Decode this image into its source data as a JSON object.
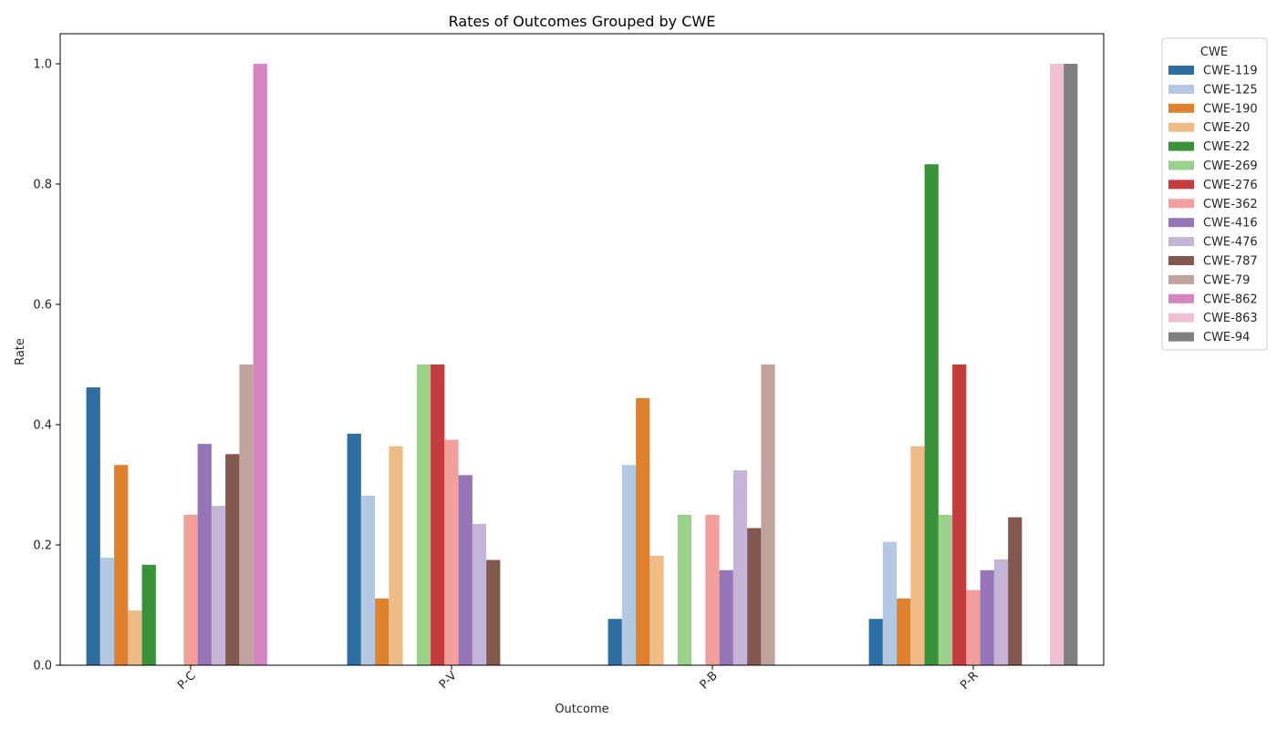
{
  "chart_data": {
    "type": "bar",
    "title": "Rates of Outcomes Grouped by CWE",
    "xlabel": "Outcome",
    "ylabel": "Rate",
    "ylim": [
      0,
      1.05
    ],
    "yticks": [
      "0.0",
      "0.2",
      "0.4",
      "0.6",
      "0.8",
      "1.0"
    ],
    "categories": [
      "P-C",
      "P-V",
      "P-B",
      "P-R"
    ],
    "legend_title": "CWE",
    "legend_position": "outside-right",
    "grid": false,
    "series": [
      {
        "name": "CWE-119",
        "color": "#2e6fa3",
        "values": [
          0.462,
          0.385,
          0.077,
          0.077
        ]
      },
      {
        "name": "CWE-125",
        "color": "#b3c8e3",
        "values": [
          0.179,
          0.282,
          0.333,
          0.205
        ]
      },
      {
        "name": "CWE-190",
        "color": "#e0812e",
        "values": [
          0.333,
          0.111,
          0.444,
          0.111
        ]
      },
      {
        "name": "CWE-20",
        "color": "#efbb86",
        "values": [
          0.091,
          0.364,
          0.182,
          0.364
        ]
      },
      {
        "name": "CWE-22",
        "color": "#3a9238",
        "values": [
          0.167,
          0.0,
          0.0,
          0.833
        ]
      },
      {
        "name": "CWE-269",
        "color": "#9ad18b",
        "values": [
          0.0,
          0.5,
          0.25,
          0.25
        ]
      },
      {
        "name": "CWE-276",
        "color": "#c53c3c",
        "values": [
          0.0,
          0.5,
          0.0,
          0.5
        ]
      },
      {
        "name": "CWE-362",
        "color": "#f3a09d",
        "values": [
          0.25,
          0.375,
          0.25,
          0.125
        ]
      },
      {
        "name": "CWE-416",
        "color": "#9575b7",
        "values": [
          0.368,
          0.316,
          0.158,
          0.158
        ]
      },
      {
        "name": "CWE-476",
        "color": "#c4b5d7",
        "values": [
          0.265,
          0.235,
          0.324,
          0.176
        ]
      },
      {
        "name": "CWE-787",
        "color": "#85584f",
        "values": [
          0.351,
          0.175,
          0.228,
          0.246
        ]
      },
      {
        "name": "CWE-79",
        "color": "#bfa39c",
        "values": [
          0.5,
          0.0,
          0.5,
          0.0
        ]
      },
      {
        "name": "CWE-862",
        "color": "#d585c0",
        "values": [
          1.0,
          0.0,
          0.0,
          0.0
        ]
      },
      {
        "name": "CWE-863",
        "color": "#efbfd6",
        "values": [
          0.0,
          0.0,
          0.0,
          1.0
        ]
      },
      {
        "name": "CWE-94",
        "color": "#7f7f7f",
        "values": [
          0.0,
          0.0,
          0.0,
          1.0
        ]
      }
    ]
  }
}
